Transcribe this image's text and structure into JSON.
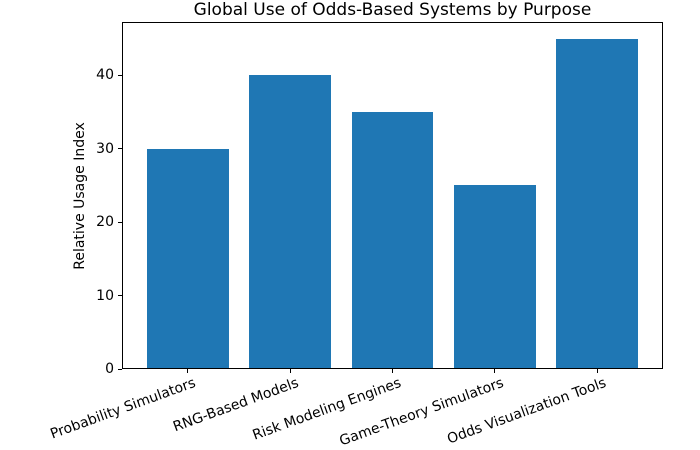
{
  "chart_data": {
    "type": "bar",
    "title": "Global Use of Odds-Based Systems by Purpose",
    "xlabel": "",
    "ylabel": "Relative Usage Index",
    "categories": [
      "Probability Simulators",
      "RNG-Based Models",
      "Risk Modeling Engines",
      "Game-Theory Simulators",
      "Odds Visualization Tools"
    ],
    "values": [
      30,
      40,
      35,
      25,
      45
    ],
    "yticks": [
      0,
      10,
      20,
      30,
      40
    ],
    "ylim": [
      0,
      47.25
    ],
    "bar_color": "#1f77b4",
    "xtick_rotation_deg": 20,
    "grid": false,
    "legend": false,
    "background_color": "#ffffff"
  }
}
